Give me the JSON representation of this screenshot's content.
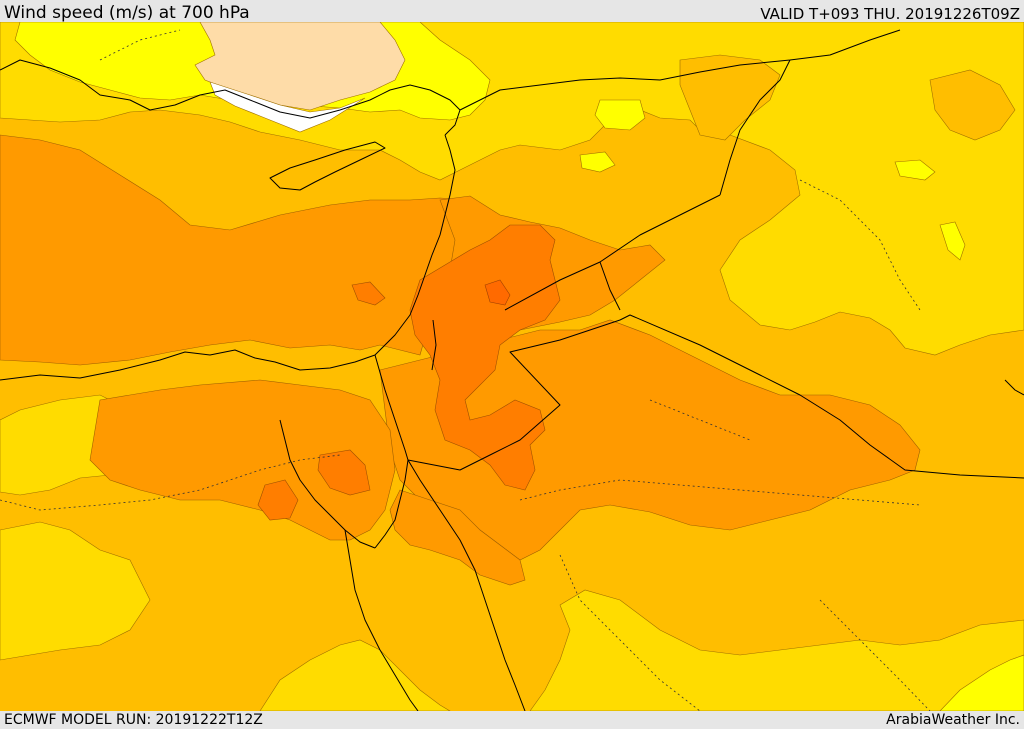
{
  "header": {
    "title": "Wind speed (m/s) at 700 hPa",
    "valid": "VALID T+093 THU. 20191226T09Z"
  },
  "footer": {
    "model_run": "ECMWF MODEL RUN: 20191222T12Z",
    "credit": "ArabiaWeather Inc."
  },
  "colors": {
    "band_lt4": "#ffffff",
    "band_4_6": "#fedca8",
    "band_6_8": "#ffff00",
    "band_8_10": "#ffdc00",
    "band_10_12": "#ffbe00",
    "band_12_14": "#ff9a00",
    "band_14_16": "#ff7e00",
    "borders": "#000000"
  }
}
